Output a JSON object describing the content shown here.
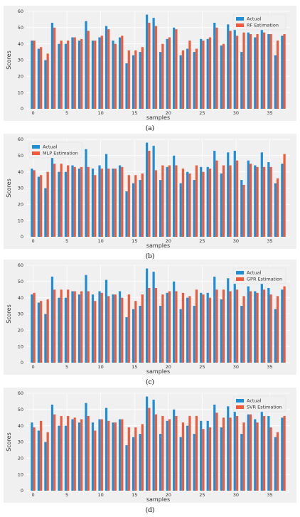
{
  "figure": {
    "colors": {
      "actual": "#1f8ed6",
      "estimate": "#f05a3a",
      "background": "#f0f0f0",
      "grid": "#ffffff"
    }
  },
  "chart_data": [
    {
      "type": "bar",
      "panel_label": "(a)",
      "xlabel": "samples",
      "ylabel": "Scores",
      "ylim": [
        0,
        60
      ],
      "yticks": [
        "0",
        "10",
        "20",
        "30",
        "40",
        "50",
        "60"
      ],
      "xticks": [
        "0",
        "5",
        "10",
        "15",
        "20",
        "25",
        "30",
        "35"
      ],
      "legend_position": "top-right",
      "series": [
        {
          "name": "Actual",
          "values": [
            42,
            37,
            30,
            53,
            40,
            40,
            44,
            42,
            54,
            42,
            44,
            51,
            42,
            44,
            28,
            33,
            35,
            58,
            56,
            35,
            43,
            50,
            33,
            37,
            35,
            43,
            43,
            53,
            39,
            52,
            53,
            35,
            47,
            44,
            50,
            46,
            33,
            45
          ]
        },
        {
          "name": "RF Estimation",
          "values": [
            42,
            38,
            34,
            50,
            42,
            42,
            44,
            43,
            48,
            42,
            45,
            49,
            40,
            45,
            36,
            36,
            38,
            53,
            51,
            40,
            44,
            49,
            36,
            42,
            37,
            42,
            44,
            50,
            40,
            48,
            45,
            47,
            46,
            46,
            47,
            46,
            42,
            46
          ]
        }
      ]
    },
    {
      "type": "bar",
      "panel_label": "(b)",
      "xlabel": "samples",
      "ylabel": "Scores",
      "ylim": [
        0,
        60
      ],
      "yticks": [
        "0",
        "10",
        "20",
        "30",
        "40",
        "50",
        "60"
      ],
      "xticks": [
        "0",
        "5",
        "10",
        "15",
        "20",
        "25",
        "30",
        "35"
      ],
      "legend_position": "top-left",
      "series": [
        {
          "name": "Actual",
          "values": [
            42,
            37,
            30,
            53,
            40,
            40,
            44,
            42,
            54,
            42,
            44,
            51,
            42,
            44,
            28,
            33,
            35,
            58,
            56,
            35,
            43,
            50,
            33,
            40,
            35,
            43,
            43,
            53,
            39,
            52,
            53,
            35,
            47,
            44,
            52,
            46,
            33,
            45
          ]
        },
        {
          "name": "MLP Estimation",
          "values": [
            41,
            38,
            40,
            45,
            45,
            44,
            43,
            43,
            43,
            38,
            42,
            42,
            42,
            43,
            38,
            38,
            39,
            53,
            41,
            44,
            44,
            44,
            42,
            39,
            44,
            40,
            42,
            47,
            44,
            44,
            47,
            32,
            45,
            43,
            43,
            43,
            36,
            51
          ]
        }
      ]
    },
    {
      "type": "bar",
      "panel_label": "(c)",
      "xlabel": "samples",
      "ylabel": "Scores",
      "ylim": [
        0,
        60
      ],
      "yticks": [
        "0",
        "10",
        "20",
        "30",
        "40",
        "50",
        "60"
      ],
      "xticks": [
        "0",
        "5",
        "10",
        "15",
        "20",
        "25",
        "30",
        "35"
      ],
      "legend_position": "top-right",
      "series": [
        {
          "name": "Actual",
          "values": [
            42,
            37,
            30,
            53,
            40,
            40,
            44,
            42,
            54,
            42,
            44,
            51,
            42,
            44,
            28,
            33,
            35,
            58,
            56,
            35,
            43,
            50,
            33,
            40,
            35,
            43,
            43,
            53,
            39,
            52,
            53,
            35,
            47,
            44,
            50,
            46,
            33,
            45
          ]
        },
        {
          "name": "GPR Estimation",
          "values": [
            43,
            38,
            39,
            45,
            45,
            45,
            44,
            44,
            44,
            38,
            43,
            41,
            42,
            40,
            42,
            38,
            42,
            46,
            46,
            42,
            44,
            44,
            43,
            41,
            45,
            42,
            40,
            45,
            45,
            44,
            45,
            41,
            44,
            43,
            45,
            42,
            41,
            47
          ]
        }
      ]
    },
    {
      "type": "bar",
      "panel_label": "(d)",
      "xlabel": "samples",
      "ylabel": "Scores",
      "ylim": [
        0,
        60
      ],
      "yticks": [
        "0",
        "10",
        "20",
        "30",
        "40",
        "50",
        "60"
      ],
      "xticks": [
        "0",
        "5",
        "10",
        "15",
        "20",
        "25",
        "30",
        "35"
      ],
      "legend_position": "top-right",
      "series": [
        {
          "name": "Actual",
          "values": [
            42,
            37,
            30,
            53,
            40,
            40,
            44,
            42,
            54,
            42,
            44,
            51,
            42,
            44,
            28,
            33,
            35,
            58,
            56,
            35,
            43,
            50,
            33,
            40,
            35,
            43,
            43,
            53,
            39,
            52,
            53,
            35,
            47,
            44,
            50,
            46,
            33,
            45
          ]
        },
        {
          "name": "SVR Estimation",
          "values": [
            39,
            43,
            36,
            47,
            46,
            46,
            45,
            44,
            46,
            37,
            44,
            43,
            42,
            44,
            39,
            39,
            41,
            51,
            47,
            46,
            44,
            46,
            42,
            46,
            46,
            38,
            39,
            48,
            45,
            45,
            46,
            42,
            47,
            42,
            46,
            39,
            36,
            46
          ]
        }
      ]
    }
  ]
}
